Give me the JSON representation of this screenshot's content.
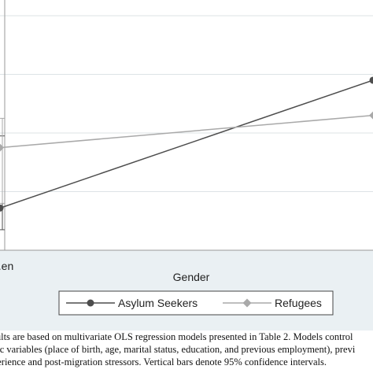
{
  "chart_data": {
    "type": "line",
    "title": "",
    "xlabel": "Gender",
    "ylabel": "",
    "x_categories": [
      "...en",
      ""
    ],
    "x": [
      0,
      1
    ],
    "ylim": [
      0,
      4
    ],
    "grid": true,
    "legend_position": "bottom",
    "series": [
      {
        "name": "Asylum Seekers",
        "values": [
          0.72,
          2.9
        ],
        "color": "#4d4d4d",
        "marker": "circle",
        "ci": [
          [
            0.35,
            1.95
          ],
          null
        ]
      },
      {
        "name": "Refugees",
        "values": [
          1.75,
          2.3
        ],
        "color": "#a9a9a9",
        "marker": "diamond",
        "ci": [
          [
            0.8,
            2.25
          ],
          null
        ]
      }
    ]
  },
  "caption": {
    "line1": "sults are based on multivariate OLS regression models presented in Table 2. Models control",
    "line2": "hic variables (place of birth, age, marital status, education, and previous employment), previ",
    "line3": "perience and post-migration stressors. Vertical bars denote 95% confidence intervals."
  },
  "colors": {
    "panel_bg": "#eaf0f3",
    "plot_bg": "#ffffff",
    "grid": "#dde3e6"
  }
}
